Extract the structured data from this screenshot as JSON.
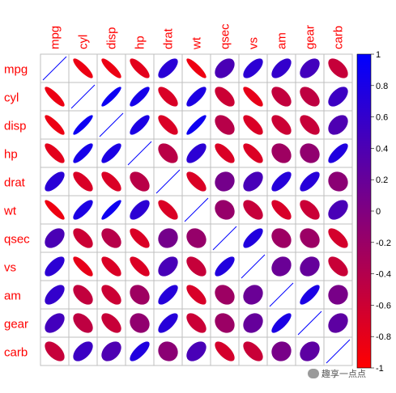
{
  "chart_data": {
    "type": "heatmap",
    "subtype": "correlation-ellipse-matrix",
    "variables": [
      "mpg",
      "cyl",
      "disp",
      "hp",
      "drat",
      "wt",
      "qsec",
      "vs",
      "am",
      "gear",
      "carb"
    ],
    "matrix": [
      [
        1,
        -0.85,
        -0.85,
        -0.78,
        0.68,
        -0.87,
        0.42,
        0.66,
        0.6,
        0.48,
        -0.55
      ],
      [
        -0.85,
        1,
        0.9,
        0.83,
        -0.7,
        0.78,
        -0.59,
        -0.81,
        -0.52,
        -0.49,
        0.53
      ],
      [
        -0.85,
        0.9,
        1,
        0.79,
        -0.71,
        0.89,
        -0.43,
        -0.71,
        -0.59,
        -0.56,
        0.39
      ],
      [
        -0.78,
        0.83,
        0.79,
        1,
        -0.45,
        0.66,
        -0.71,
        -0.72,
        -0.24,
        -0.13,
        0.75
      ],
      [
        0.68,
        -0.7,
        -0.71,
        -0.45,
        1,
        -0.71,
        0.09,
        0.44,
        0.71,
        0.7,
        -0.09
      ],
      [
        -0.87,
        0.78,
        0.89,
        0.66,
        -0.71,
        1,
        -0.17,
        -0.55,
        -0.69,
        -0.58,
        0.43
      ],
      [
        0.42,
        -0.59,
        -0.43,
        -0.71,
        0.09,
        -0.17,
        1,
        0.74,
        -0.23,
        -0.21,
        -0.66
      ],
      [
        0.66,
        -0.81,
        -0.71,
        -0.72,
        0.44,
        -0.55,
        0.74,
        1,
        0.17,
        0.21,
        -0.57
      ],
      [
        0.6,
        -0.52,
        -0.59,
        -0.24,
        0.71,
        -0.69,
        -0.23,
        0.17,
        1,
        0.79,
        0.06
      ],
      [
        0.48,
        -0.49,
        -0.56,
        -0.13,
        0.7,
        -0.58,
        -0.21,
        0.21,
        0.79,
        1,
        0.27
      ],
      [
        -0.55,
        0.53,
        0.39,
        0.75,
        -0.09,
        0.43,
        -0.66,
        -0.57,
        0.06,
        0.27,
        1
      ]
    ],
    "color_scale": {
      "range": [
        -1,
        1
      ],
      "low": "#ff0000",
      "mid": "#800080",
      "high": "#0000ff"
    },
    "legend_ticks": [
      "1",
      "0.8",
      "0.6",
      "0.4",
      "0.2",
      "0",
      "-0.2",
      "-0.4",
      "-0.6",
      "-0.8",
      "-1"
    ],
    "legend_placement": "right",
    "label_color": "#ff0000",
    "grid_color": "#bfbfbf"
  },
  "watermark": {
    "text": "趣享一点点",
    "icon": "wechat-icon"
  }
}
